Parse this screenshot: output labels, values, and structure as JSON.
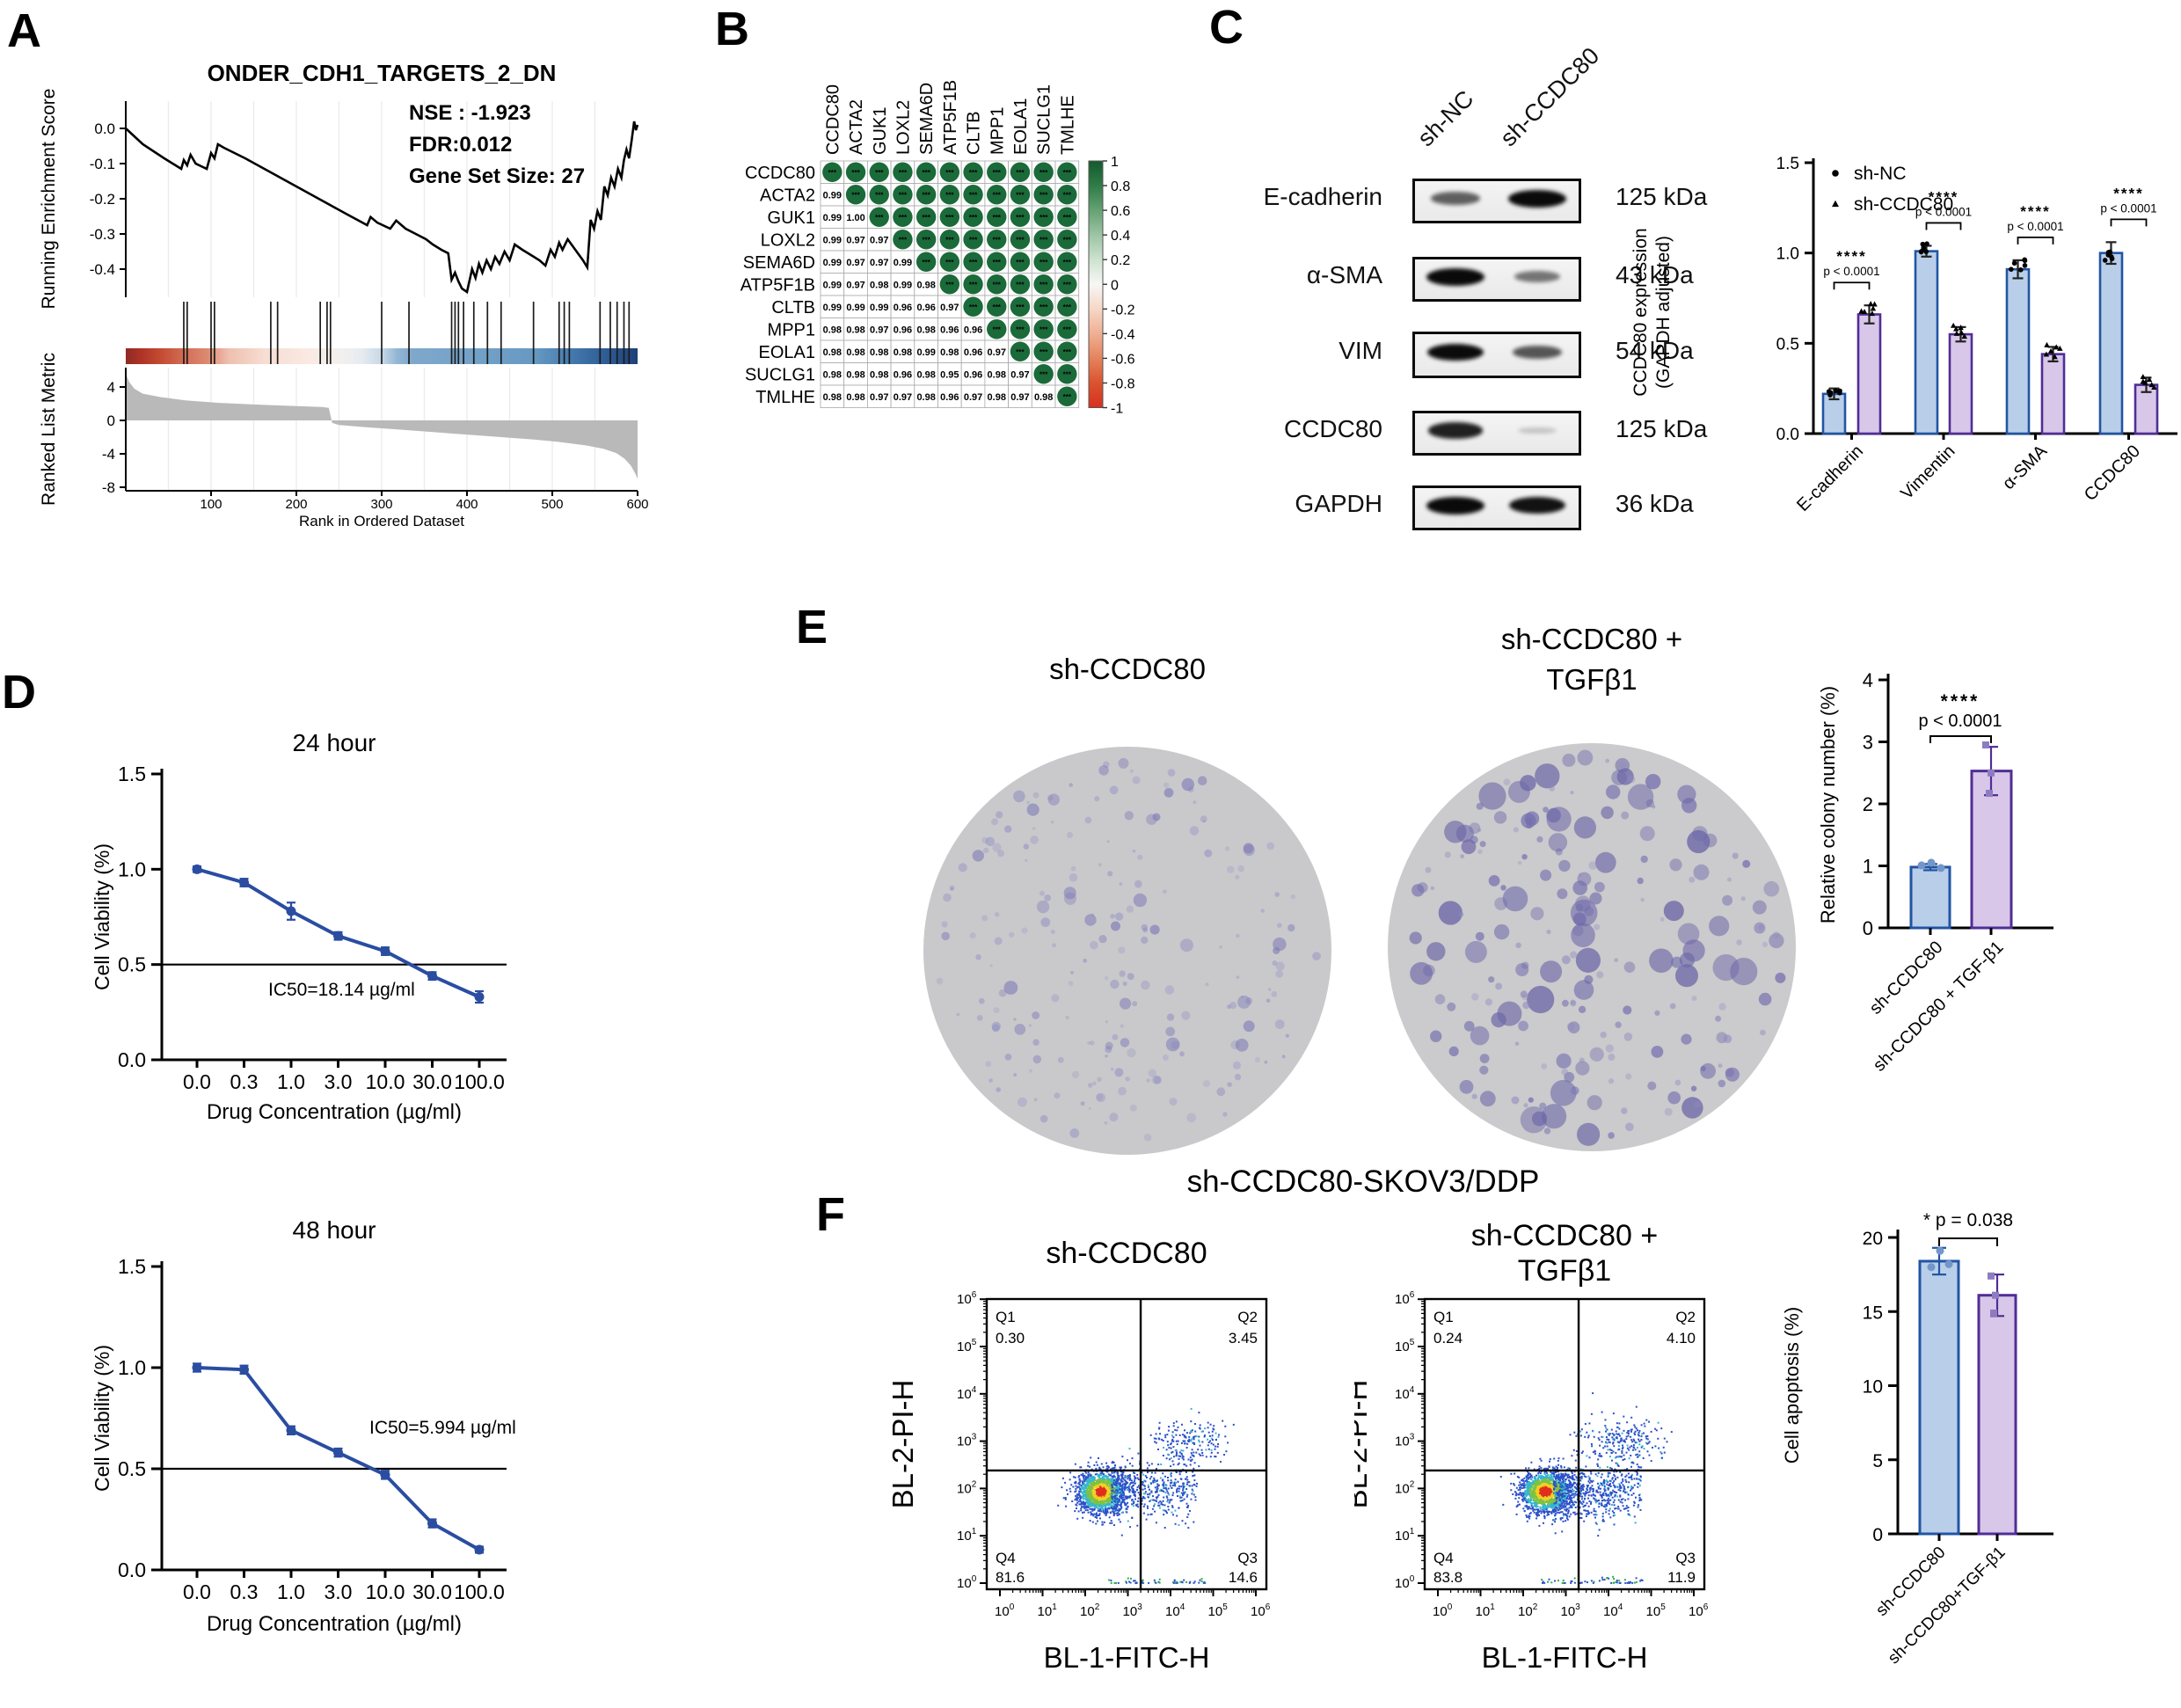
{
  "panels": {
    "a": "A",
    "b": "B",
    "c": "C",
    "d": "D",
    "e": "E",
    "f": "F"
  },
  "colors": {
    "bar_blue_fill": "#b9cee9",
    "bar_blue_stroke": "#2155a3",
    "bar_purple_fill": "#d8c7e8",
    "bar_purple_stroke": "#502d96",
    "line_blue": "#2a4da1",
    "dot_blue": "#7396ca",
    "dot_purple": "#8d7cc0",
    "matrix_green": "#1b6a3a",
    "gray_metric": "#b9b9b9",
    "plate_fill_left": "#c9c9cc",
    "plate_fill_right": "#cbcacc",
    "colony_left": "#8f8cc0",
    "colony_right": "#746fae"
  },
  "panel_e": {
    "plate1_label": "sh-CCDC80",
    "plate2_label_line1": "sh-CCDC80 +",
    "plate2_label_line2": "TGFβ1",
    "caption": "sh-CCDC80-SKOV3/DDP"
  },
  "chart_data": [
    {
      "id": "gsea",
      "panel": "A",
      "type": "line",
      "title": "ONDER_CDH1_TARGETS_2_DN",
      "stats": [
        "NSE :  -1.923",
        "FDR:0.012",
        "Gene Set Size: 27"
      ],
      "ylabel_top": "Running Enrichment Score",
      "ylabel_bottom": "Ranked List Metric",
      "xlabel": "Rank in Ordered Dataset",
      "xlim": [
        0,
        600
      ],
      "x_ticks": [
        100,
        200,
        300,
        400,
        500,
        600
      ],
      "es_ticks": [
        0.0,
        -0.1,
        -0.2,
        -0.3,
        -0.4
      ],
      "metric_ticks": [
        4,
        0,
        -4,
        -8
      ],
      "es_curve": [
        [
          0,
          0
        ],
        [
          20,
          -0.045
        ],
        [
          45,
          -0.085
        ],
        [
          65,
          -0.115
        ],
        [
          68,
          -0.09
        ],
        [
          72,
          -0.105
        ],
        [
          76,
          -0.075
        ],
        [
          82,
          -0.1
        ],
        [
          95,
          -0.115
        ],
        [
          100,
          -0.07
        ],
        [
          104,
          -0.085
        ],
        [
          108,
          -0.045
        ],
        [
          115,
          -0.055
        ],
        [
          140,
          -0.085
        ],
        [
          170,
          -0.125
        ],
        [
          200,
          -0.165
        ],
        [
          230,
          -0.205
        ],
        [
          260,
          -0.245
        ],
        [
          283,
          -0.275
        ],
        [
          287,
          -0.252
        ],
        [
          295,
          -0.268
        ],
        [
          310,
          -0.285
        ],
        [
          317,
          -0.262
        ],
        [
          328,
          -0.285
        ],
        [
          340,
          -0.3
        ],
        [
          352,
          -0.315
        ],
        [
          360,
          -0.33
        ],
        [
          370,
          -0.345
        ],
        [
          378,
          -0.355
        ],
        [
          382,
          -0.43
        ],
        [
          386,
          -0.41
        ],
        [
          390,
          -0.435
        ],
        [
          394,
          -0.455
        ],
        [
          400,
          -0.465
        ],
        [
          406,
          -0.4
        ],
        [
          410,
          -0.425
        ],
        [
          414,
          -0.385
        ],
        [
          418,
          -0.41
        ],
        [
          423,
          -0.375
        ],
        [
          428,
          -0.4
        ],
        [
          433,
          -0.365
        ],
        [
          438,
          -0.385
        ],
        [
          444,
          -0.35
        ],
        [
          450,
          -0.375
        ],
        [
          456,
          -0.33
        ],
        [
          465,
          -0.345
        ],
        [
          475,
          -0.36
        ],
        [
          485,
          -0.375
        ],
        [
          492,
          -0.39
        ],
        [
          498,
          -0.345
        ],
        [
          503,
          -0.365
        ],
        [
          508,
          -0.325
        ],
        [
          512,
          -0.345
        ],
        [
          518,
          -0.315
        ],
        [
          524,
          -0.335
        ],
        [
          530,
          -0.355
        ],
        [
          536,
          -0.375
        ],
        [
          541,
          -0.395
        ],
        [
          545,
          -0.26
        ],
        [
          549,
          -0.285
        ],
        [
          553,
          -0.235
        ],
        [
          557,
          -0.26
        ],
        [
          561,
          -0.165
        ],
        [
          565,
          -0.19
        ],
        [
          569,
          -0.14
        ],
        [
          573,
          -0.165
        ],
        [
          577,
          -0.115
        ],
        [
          581,
          -0.14
        ],
        [
          584,
          -0.09
        ],
        [
          587,
          -0.06
        ],
        [
          590,
          -0.085
        ],
        [
          593,
          -0.035
        ],
        [
          596,
          0.02
        ],
        [
          598,
          -0.005
        ],
        [
          600,
          0.01
        ]
      ],
      "hits": [
        68,
        72,
        100,
        104,
        170,
        178,
        228,
        236,
        240,
        300,
        332,
        382,
        386,
        390,
        396,
        408,
        424,
        440,
        478,
        508,
        514,
        520,
        556,
        568,
        576,
        584,
        590
      ],
      "metric_curve": [
        [
          0,
          5.6
        ],
        [
          4,
          4.6
        ],
        [
          10,
          3.8
        ],
        [
          20,
          3.2
        ],
        [
          40,
          2.8
        ],
        [
          70,
          2.4
        ],
        [
          110,
          2.1
        ],
        [
          150,
          1.9
        ],
        [
          190,
          1.75
        ],
        [
          230,
          1.6
        ],
        [
          238,
          1.5
        ],
        [
          242,
          -0.3
        ],
        [
          250,
          -0.55
        ],
        [
          280,
          -0.8
        ],
        [
          320,
          -1.1
        ],
        [
          360,
          -1.4
        ],
        [
          400,
          -1.7
        ],
        [
          440,
          -2.0
        ],
        [
          480,
          -2.3
        ],
        [
          510,
          -2.6
        ],
        [
          540,
          -3.0
        ],
        [
          560,
          -3.4
        ],
        [
          575,
          -3.9
        ],
        [
          585,
          -4.6
        ],
        [
          592,
          -5.4
        ],
        [
          597,
          -6.3
        ],
        [
          600,
          -7.0
        ]
      ],
      "band_gradient": [
        [
          0,
          "#8e2b22"
        ],
        [
          0.03,
          "#b03227"
        ],
        [
          0.07,
          "#c44d33"
        ],
        [
          0.12,
          "#d4715a"
        ],
        [
          0.16,
          "#dd8a72"
        ],
        [
          0.2,
          "#eebfae"
        ],
        [
          0.27,
          "#f7ddd2"
        ],
        [
          0.36,
          "#faeae3"
        ],
        [
          0.42,
          "#f2f0ee"
        ],
        [
          0.46,
          "#e7ecf1"
        ],
        [
          0.5,
          "#c7d8e6"
        ],
        [
          0.53,
          "#93b6d4"
        ],
        [
          0.56,
          "#7fa8cb"
        ],
        [
          0.72,
          "#6f9fc6"
        ],
        [
          0.8,
          "#6699c2"
        ],
        [
          0.85,
          "#4e83b4"
        ],
        [
          0.9,
          "#3a6da3"
        ],
        [
          0.95,
          "#2b5791"
        ],
        [
          1,
          "#1f4077"
        ]
      ]
    },
    {
      "id": "correlation",
      "panel": "B",
      "type": "heatmap",
      "genes": [
        "CCDC80",
        "ACTA2",
        "GUK1",
        "LOXL2",
        "SEMA6D",
        "ATP5F1B",
        "CLTB",
        "MPP1",
        "EOLA1",
        "SUCLG1",
        "TMLHE"
      ],
      "lower_values": [
        [],
        [
          0.99
        ],
        [
          0.99,
          1.0
        ],
        [
          0.99,
          0.97,
          0.97
        ],
        [
          0.99,
          0.97,
          0.97,
          0.99
        ],
        [
          0.99,
          0.97,
          0.98,
          0.99,
          0.98
        ],
        [
          0.99,
          0.99,
          0.99,
          0.96,
          0.96,
          0.97
        ],
        [
          0.98,
          0.98,
          0.97,
          0.96,
          0.98,
          0.96,
          0.96
        ],
        [
          0.98,
          0.98,
          0.98,
          0.98,
          0.99,
          0.98,
          0.96,
          0.97
        ],
        [
          0.98,
          0.98,
          0.98,
          0.96,
          0.98,
          0.95,
          0.96,
          0.98,
          0.97
        ],
        [
          0.98,
          0.98,
          0.97,
          0.97,
          0.98,
          0.96,
          0.97,
          0.98,
          0.97,
          0.98
        ]
      ],
      "upper_marker": "***",
      "colorbar_ticks": [
        "1",
        "0.8",
        "0.6",
        "0.4",
        "0.2",
        "0",
        "-0.2",
        "-0.4",
        "-0.6",
        "-0.8",
        "-1"
      ],
      "colorbar_gradient": [
        [
          0,
          "#14592e"
        ],
        [
          0.1,
          "#2f7c47"
        ],
        [
          0.2,
          "#66a173"
        ],
        [
          0.3,
          "#9cc4a4"
        ],
        [
          0.4,
          "#cde2cf"
        ],
        [
          0.5,
          "#f7f7f5"
        ],
        [
          0.6,
          "#f6d7c6"
        ],
        [
          0.7,
          "#efb093"
        ],
        [
          0.8,
          "#e4835c"
        ],
        [
          0.9,
          "#da532f"
        ],
        [
          1,
          "#d7301f"
        ]
      ]
    },
    {
      "id": "wb",
      "panel": "C",
      "type": "table",
      "lanes": [
        "sh-NC",
        "sh-CCDC80"
      ],
      "rows": [
        {
          "protein": "E-cadherin",
          "kda": "125 kDa",
          "intensities": [
            0.55,
            1.0
          ]
        },
        {
          "protein": "α-SMA",
          "kda": "43 kDa",
          "intensities": [
            1.0,
            0.45
          ]
        },
        {
          "protein": "VIM",
          "kda": "54 kDa",
          "intensities": [
            0.95,
            0.6
          ]
        },
        {
          "protein": "CCDC80",
          "kda": "125 kDa",
          "intensities": [
            0.85,
            0.07
          ]
        },
        {
          "protein": "GAPDH",
          "kda": "36 kDa",
          "intensities": [
            1.0,
            0.92
          ]
        }
      ]
    },
    {
      "id": "wb_quant",
      "panel": "C",
      "type": "bar",
      "categories": [
        "E-cadherin",
        "Vimentin",
        "α-SMA",
        "CCDC80"
      ],
      "series": [
        {
          "name": "sh-NC",
          "marker": "circle",
          "values": [
            0.22,
            1.01,
            0.91,
            1.0
          ],
          "errors": [
            0.03,
            0.03,
            0.05,
            0.06
          ]
        },
        {
          "name": "sh-CCDC80",
          "marker": "triangle",
          "values": [
            0.66,
            0.55,
            0.44,
            0.27
          ],
          "errors": [
            0.05,
            0.04,
            0.04,
            0.04
          ]
        }
      ],
      "ylabel_lines": [
        "CCDC80 expression",
        "(GAPDH adjusted)"
      ],
      "ylim": [
        0,
        1.5
      ],
      "yticks": [
        "0.0",
        "0.5",
        "1.0",
        "1.5"
      ],
      "sig": [
        {
          "stars": "****",
          "p": "p < 0.0001"
        },
        {
          "stars": "****",
          "p": "p < 0.0001"
        },
        {
          "stars": "****",
          "p": "p < 0.0001"
        },
        {
          "stars": "****",
          "p": "p < 0.0001"
        }
      ]
    },
    {
      "id": "viability_24h",
      "panel": "D",
      "type": "line",
      "title": "24 hour",
      "xlabel": "Drug Concentration (µg/ml)",
      "ylabel": "Cell Viability (%)",
      "categories": [
        "0.0",
        "0.3",
        "1.0",
        "3.0",
        "10.0",
        "30.0",
        "100.0"
      ],
      "values": [
        1.0,
        0.93,
        0.78,
        0.65,
        0.57,
        0.44,
        0.33
      ],
      "errors": [
        0.015,
        0.02,
        0.045,
        0.02,
        0.02,
        0.02,
        0.03
      ],
      "ref_line": 0.5,
      "ylim": [
        0,
        1.5
      ],
      "yticks": [
        "0.0",
        "0.5",
        "1.0",
        "1.5"
      ],
      "ic50_label": "IC50=18.14 µg/ml"
    },
    {
      "id": "viability_48h",
      "panel": "D",
      "type": "line",
      "title": "48 hour",
      "xlabel": "Drug Concentration (µg/ml)",
      "ylabel": "Cell Viability (%)",
      "categories": [
        "0.0",
        "0.3",
        "1.0",
        "3.0",
        "10.0",
        "30.0",
        "100.0"
      ],
      "values": [
        1.0,
        0.99,
        0.69,
        0.58,
        0.47,
        0.23,
        0.1
      ],
      "errors": [
        0.02,
        0.02,
        0.02,
        0.02,
        0.02,
        0.02,
        0.015
      ],
      "ref_line": 0.5,
      "ylim": [
        0,
        1.5
      ],
      "yticks": [
        "0.0",
        "0.5",
        "1.0",
        "1.5"
      ],
      "ic50_label": "IC50=5.994 µg/ml"
    },
    {
      "id": "colony_bar",
      "panel": "E",
      "type": "bar",
      "categories": [
        "sh-CCDC80",
        "sh-CCDC80 + TGF-β1"
      ],
      "values": [
        0.98,
        2.53
      ],
      "errors": [
        0.05,
        0.39
      ],
      "ylabel": "Relative colony number (%)",
      "ylim": [
        0,
        4
      ],
      "yticks": [
        "0",
        "1",
        "2",
        "3",
        "4"
      ],
      "sig": {
        "stars": "****",
        "p": "p < 0.0001"
      }
    },
    {
      "id": "flow_left",
      "panel": "F",
      "type": "scatter",
      "title_lines": [
        "sh-CCDC80"
      ],
      "xlabel": "BL-1-FITC-H",
      "ylabel": "BL-2-PI-H",
      "quadrants": {
        "q1_name": "Q1",
        "q1": "0.30",
        "q2_name": "Q2",
        "q2": "3.45",
        "q3_name": "Q3",
        "q3": "14.6",
        "q4_name": "Q4",
        "q4": "81.6"
      },
      "decades": 6,
      "gate_x": 3.3,
      "gate_y": 2.38,
      "cluster": {
        "cx": 2.35,
        "cy": 1.95,
        "sx": 0.28,
        "sy": 0.22,
        "n": 1500
      },
      "spread": {
        "x0": 2.6,
        "x1": 4.6,
        "cy": 1.95,
        "sy": 0.3,
        "n": 520
      },
      "upper": {
        "cx": 4.4,
        "cy": 3.0,
        "sx": 0.45,
        "sy": 0.25,
        "n": 190
      },
      "bottom_n": 55,
      "seed": 7
    },
    {
      "id": "flow_right",
      "panel": "F",
      "type": "scatter",
      "title_lines": [
        "sh-CCDC80 +",
        "TGFβ1"
      ],
      "xlabel": "BL-1-FITC-H",
      "ylabel": "BL-2-PI-H",
      "quadrants": {
        "q1_name": "Q1",
        "q1": "0.24",
        "q2_name": "Q2",
        "q2": "4.10",
        "q3_name": "Q3",
        "q3": "11.9",
        "q4_name": "Q4",
        "q4": "83.8"
      },
      "decades": 6,
      "gate_x": 3.3,
      "gate_y": 2.38,
      "cluster": {
        "cx": 2.5,
        "cy": 1.95,
        "sx": 0.3,
        "sy": 0.22,
        "n": 1550
      },
      "spread": {
        "x0": 2.7,
        "x1": 4.75,
        "cy": 1.95,
        "sy": 0.3,
        "n": 650
      },
      "upper": {
        "cx": 4.3,
        "cy": 3.0,
        "sx": 0.5,
        "sy": 0.27,
        "n": 250
      },
      "bottom_n": 60,
      "seed": 11
    },
    {
      "id": "apoptosis_bar",
      "panel": "F",
      "type": "bar",
      "categories": [
        "sh-CCDC80",
        "sh-CCDC80+TGF-β1"
      ],
      "values": [
        18.4,
        16.1
      ],
      "errors": [
        0.9,
        1.4
      ],
      "ylabel": "Cell apoptosis (%)",
      "ylim": [
        0,
        20
      ],
      "yticks": [
        "0",
        "5",
        "10",
        "15",
        "20"
      ],
      "sig": "* p = 0.038"
    }
  ]
}
